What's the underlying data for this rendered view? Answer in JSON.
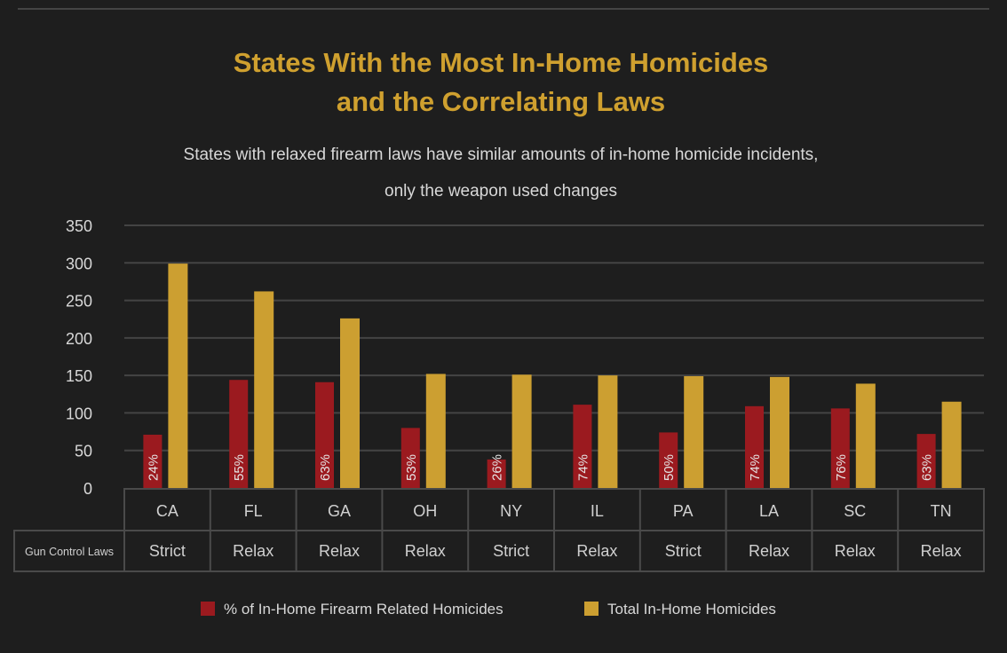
{
  "chart_data": {
    "type": "bar",
    "title": [
      "States With the Most In-Home Homicides",
      "and the Correlating Laws"
    ],
    "subtitle": [
      "States with relaxed firearm laws have similar amounts of in-home homicide incidents,",
      "only the weapon used changes"
    ],
    "categories": [
      "CA",
      "FL",
      "GA",
      "OH",
      "NY",
      "IL",
      "PA",
      "LA",
      "SC",
      "TN"
    ],
    "ylim": [
      0,
      350
    ],
    "yticks": [
      0,
      50,
      100,
      150,
      200,
      250,
      300,
      350
    ],
    "grid": true,
    "series": [
      {
        "name": "% of In-Home Firearm Related Homicides",
        "color": "#9b1a1f",
        "values": [
          71,
          144,
          141,
          80,
          38,
          111,
          74,
          109,
          106,
          72
        ],
        "labels": [
          "24%",
          "55%",
          "63%",
          "53%",
          "26%",
          "74%",
          "50%",
          "74%",
          "76%",
          "63%"
        ]
      },
      {
        "name": "Total In-Home Homicides",
        "color": "#cc9f31",
        "values": [
          299,
          262,
          226,
          152,
          151,
          150,
          149,
          148,
          139,
          115
        ]
      }
    ],
    "table": {
      "row_label": "Gun Control Laws",
      "values": [
        "Strict",
        "Relax",
        "Relax",
        "Relax",
        "Strict",
        "Relax",
        "Strict",
        "Relax",
        "Relax",
        "Relax"
      ]
    },
    "legend_position": "bottom"
  }
}
